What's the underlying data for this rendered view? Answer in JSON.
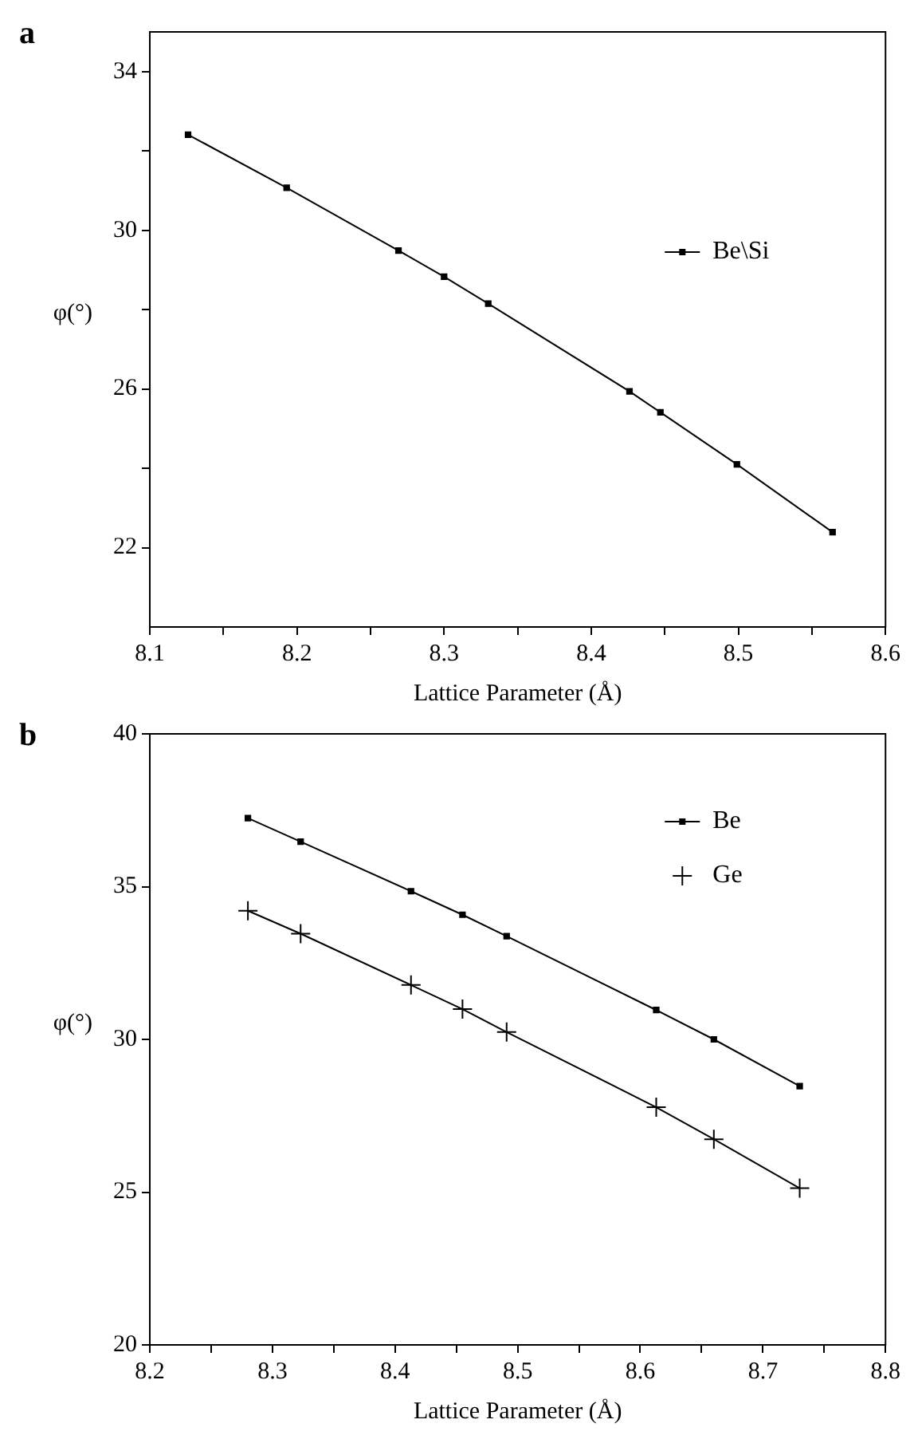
{
  "chart_data": [
    {
      "type": "line",
      "annotations": [
        "a"
      ],
      "xlabel": "Lattice Parameter (Å)",
      "ylabel": "φ(°)",
      "xlim": [
        8.1,
        8.6
      ],
      "xticks": [
        8.1,
        {
          "value": 8.15,
          "label": null
        },
        8.2,
        {
          "value": 8.25,
          "label": null
        },
        8.3,
        {
          "value": 8.35,
          "label": null
        },
        8.4,
        {
          "value": 8.45,
          "label": null
        },
        8.5,
        {
          "value": 8.55,
          "label": null
        },
        8.6
      ],
      "ylim": [
        20,
        35
      ],
      "yticks": [
        22,
        {
          "value": 24,
          "label": null
        },
        26,
        {
          "value": 28,
          "label": null
        },
        30,
        {
          "value": 32,
          "label": null
        },
        34
      ],
      "legend": "right",
      "grid": false,
      "marker": "square",
      "line_style": "solid",
      "series": [
        {
          "name": "Be\\Si",
          "color": "#000000",
          "x": [
            8.126,
            8.193,
            8.269,
            8.3,
            8.33,
            8.426,
            8.447,
            8.499,
            8.564
          ],
          "values": [
            32.41,
            31.07,
            29.49,
            28.83,
            28.15,
            25.94,
            25.41,
            24.1,
            22.39
          ]
        }
      ]
    },
    {
      "type": "line",
      "annotations": [
        "b"
      ],
      "xlabel": "Lattice Parameter (Å)",
      "ylabel": "φ(°)",
      "xlim": [
        8.2,
        8.8
      ],
      "xticks": [
        8.2,
        {
          "value": 8.25,
          "label": null
        },
        8.3,
        {
          "value": 8.35,
          "label": null
        },
        8.4,
        {
          "value": 8.45,
          "label": null
        },
        8.5,
        {
          "value": 8.55,
          "label": null
        },
        8.6,
        {
          "value": 8.65,
          "label": null
        },
        8.7,
        {
          "value": 8.75,
          "label": null
        },
        8.8
      ],
      "ylim": [
        20,
        40
      ],
      "yticks": [
        20,
        25,
        30,
        35,
        40
      ],
      "legend": "top right",
      "grid": false,
      "line_style": "solid",
      "series": [
        {
          "name": "Be",
          "color": "#000000",
          "marker": "square",
          "x": [
            8.28,
            8.323,
            8.413,
            8.455,
            8.491,
            8.613,
            8.66,
            8.73
          ],
          "values": [
            37.24,
            36.47,
            34.85,
            34.08,
            33.38,
            30.96,
            30.0,
            28.47
          ]
        },
        {
          "name": "Ge",
          "color": "#000000",
          "marker": "cross",
          "x": [
            8.28,
            8.323,
            8.413,
            8.455,
            8.491,
            8.613,
            8.66,
            8.73
          ],
          "values": [
            34.21,
            33.46,
            31.78,
            30.99,
            30.24,
            27.78,
            26.73,
            25.13
          ]
        }
      ]
    }
  ]
}
